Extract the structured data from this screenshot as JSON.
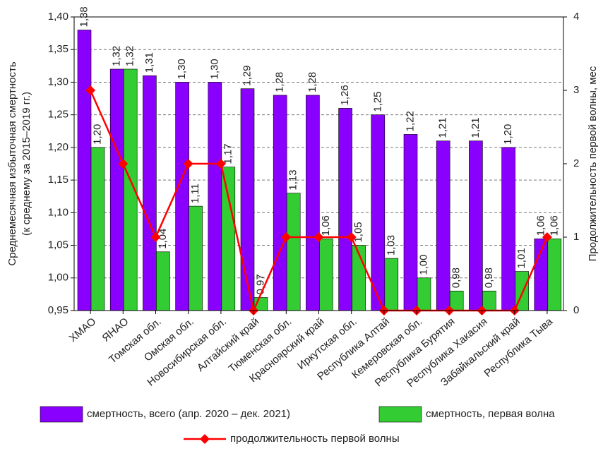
{
  "chart_data": {
    "type": "bar-line",
    "ylabel": [
      "Среднемесячная избыточная смертность",
      "(к среднему за 2015–2019 гг.)"
    ],
    "y2label": "Продолжительность первой волны, мес",
    "categories": [
      "ХМАО",
      "ЯНАО",
      "Томская обл.",
      "Омская обл.",
      "Новосибирская обл.",
      "Алтайский край",
      "Тюменская обл.",
      "Красноярский край",
      "Иркутская обл.",
      "Республика Алтай",
      "Кемеровская обл.",
      "Республика Бурятия",
      "Республика Хакасия",
      "Забайкальский край",
      "Республика Тыва"
    ],
    "series": [
      {
        "name": "смертность, всего (апр. 2020 – дек. 2021)",
        "type": "bar",
        "color": "#8a00ff",
        "values": [
          1.38,
          1.32,
          1.31,
          1.3,
          1.3,
          1.29,
          1.28,
          1.28,
          1.26,
          1.25,
          1.22,
          1.21,
          1.21,
          1.2,
          1.06
        ],
        "value_labels": [
          "1,38",
          "1,32",
          "1,31",
          "1,30",
          "1,30",
          "1,29",
          "1,28",
          "1,28",
          "1,26",
          "1,25",
          "1,22",
          "1,21",
          "1,21",
          "1,20",
          "1,06"
        ]
      },
      {
        "name": "смертность, первая волна",
        "type": "bar",
        "color": "#33cc33",
        "values": [
          1.2,
          1.32,
          1.04,
          1.11,
          1.17,
          0.97,
          1.13,
          1.06,
          1.05,
          1.03,
          1.0,
          0.98,
          0.98,
          1.01,
          1.06
        ],
        "value_labels": [
          "1,20",
          "1,32",
          "1,04",
          "1,11",
          "1,17",
          "0,97",
          "1,13",
          "1,06",
          "1,05",
          "1,03",
          "1,00",
          "0,98",
          "0,98",
          "1,01",
          "1,06"
        ]
      },
      {
        "name": "продолжительность первой волны",
        "type": "line",
        "axis": "y2",
        "color": "#ff0000",
        "values": [
          3,
          2,
          1,
          2,
          2,
          0,
          1,
          1,
          1,
          0,
          0,
          0,
          0,
          0,
          1
        ]
      }
    ],
    "ylim": [
      0.95,
      1.4
    ],
    "yticks": [
      {
        "value": 0.95,
        "label": "0,95"
      },
      {
        "value": 1.0,
        "label": "1,00"
      },
      {
        "value": 1.05,
        "label": "1,05"
      },
      {
        "value": 1.1,
        "label": "1,10"
      },
      {
        "value": 1.15,
        "label": "1,15"
      },
      {
        "value": 1.2,
        "label": "1,20"
      },
      {
        "value": 1.25,
        "label": "1,25"
      },
      {
        "value": 1.3,
        "label": "1,30"
      },
      {
        "value": 1.35,
        "label": "1,35"
      },
      {
        "value": 1.4,
        "label": "1,40"
      }
    ],
    "y2lim": [
      0,
      4
    ],
    "y2ticks": [
      0,
      1,
      2,
      3,
      4
    ],
    "grid": true
  }
}
